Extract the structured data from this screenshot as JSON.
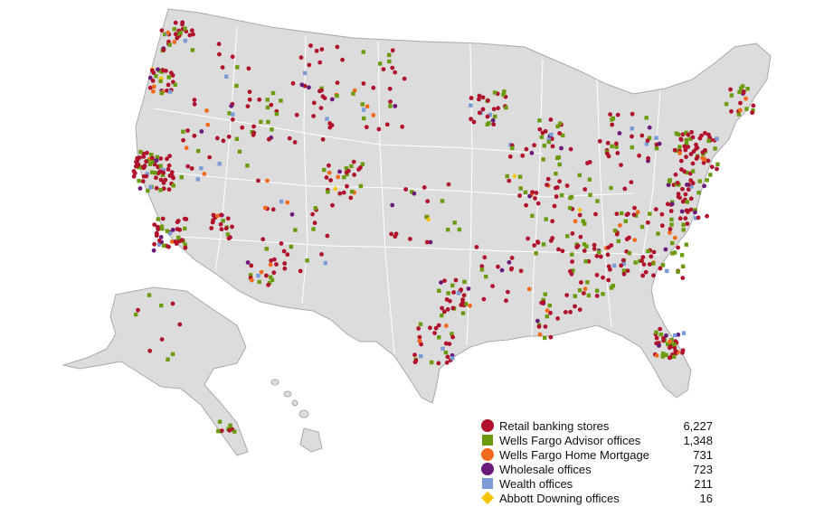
{
  "map": {
    "land_color": "#dcdcdc",
    "border_color": "#ffffff",
    "outline_color": "#a9a9a9"
  },
  "legend": {
    "items": [
      {
        "label": "Retail banking stores",
        "count": "6,227",
        "color": "#b0112b",
        "shape": "circle"
      },
      {
        "label": "Wells Fargo Advisor offices",
        "count": "1,348",
        "color": "#6b9a0d",
        "shape": "square"
      },
      {
        "label": "Wells Fargo Home Mortgage",
        "count": "731",
        "color": "#f26a1b",
        "shape": "circle"
      },
      {
        "label": "Wholesale offices",
        "count": "723",
        "color": "#6a1b79",
        "shape": "circle"
      },
      {
        "label": "Wealth offices",
        "count": "211",
        "color": "#7b9bd6",
        "shape": "square"
      },
      {
        "label": "Abbott Downing offices",
        "count": "16",
        "color": "#f5c400",
        "shape": "diamond"
      }
    ]
  }
}
